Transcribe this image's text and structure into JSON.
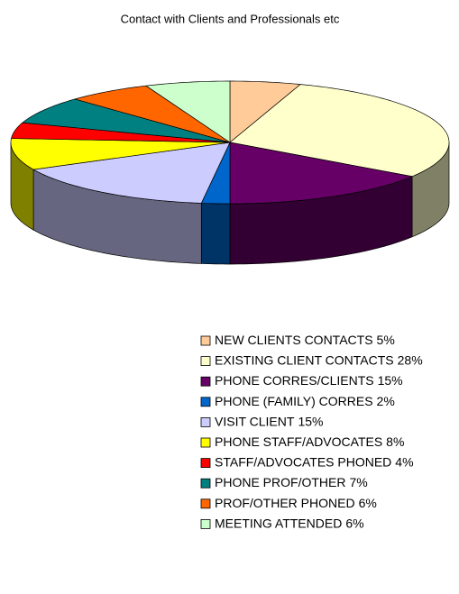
{
  "chart_data": {
    "type": "pie",
    "title": "Contact with Clients and Professionals etc",
    "categories": [
      "NEW CLIENTS CONTACTS",
      "EXISTING CLIENT CONTACTS",
      "PHONE CORRES/CLIENTS",
      "PHONE (FAMILY) CORRES",
      "VISIT CLIENT",
      "PHONE STAFF/ADVOCATES",
      "STAFF/ADVOCATES PHONED",
      "PHONE PROF/OTHER",
      "PROF/OTHER PHONED",
      "MEETING ATTENDED"
    ],
    "values": [
      5,
      28,
      15,
      2,
      15,
      8,
      4,
      7,
      6,
      6
    ],
    "value_labels": [
      "5%",
      "28%",
      "15%",
      "2%",
      "15%",
      "8%",
      "4%",
      "7%",
      "6%",
      "6%"
    ],
    "colors": [
      "#FFCC99",
      "#FFFFCC",
      "#660066",
      "#0066CC",
      "#CCCCFF",
      "#FFFF00",
      "#FF0000",
      "#008080",
      "#FF6600",
      "#CCFFCC"
    ],
    "legend": "bottom"
  }
}
